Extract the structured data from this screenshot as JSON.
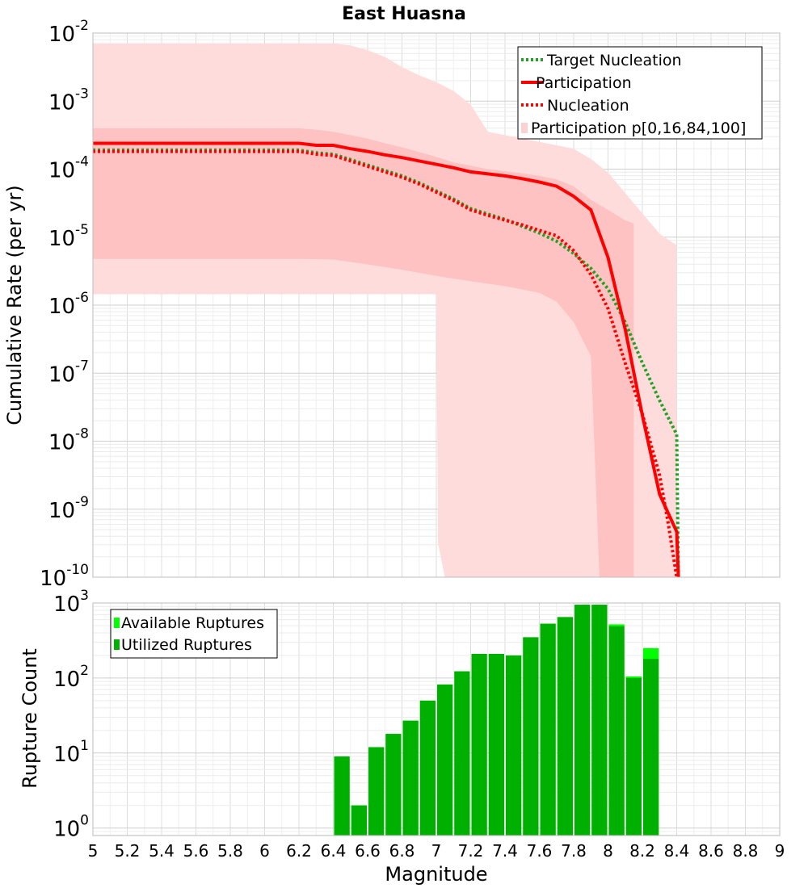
{
  "chart_data": [
    {
      "type": "line",
      "title": "East Huasna",
      "xlabel": "",
      "ylabel": "Cumulative Rate (per yr)",
      "xlim": [
        5,
        9
      ],
      "ylim_log10": [
        -10,
        -2
      ],
      "y_tick_exponents": [
        "-10",
        "-9",
        "-8",
        "-7",
        "-6",
        "-5",
        "-4",
        "-3",
        "-2"
      ],
      "y_tick_base": "10",
      "legend_position": "top-right",
      "legend": [
        "Target Nucleation",
        "Participation",
        "Nucleation",
        "Participation p[0,16,84,100]"
      ],
      "series": [
        {
          "name": "Target Nucleation",
          "style": "dotted",
          "color": "#22a022",
          "x": [
            5.0,
            5.5,
            6.0,
            6.2,
            6.3,
            6.4,
            6.5,
            6.6,
            6.7,
            6.8,
            6.9,
            7.0,
            7.1,
            7.2,
            7.3,
            7.4,
            7.5,
            7.6,
            7.7,
            7.8,
            7.9,
            8.0,
            8.1,
            8.2,
            8.3,
            8.4,
            8.41
          ],
          "log10_y": [
            -3.72,
            -3.72,
            -3.72,
            -3.72,
            -3.76,
            -3.78,
            -3.86,
            -3.94,
            -4.02,
            -4.1,
            -4.2,
            -4.32,
            -4.44,
            -4.58,
            -4.66,
            -4.74,
            -4.84,
            -4.94,
            -5.06,
            -5.24,
            -5.46,
            -5.76,
            -6.25,
            -6.85,
            -7.4,
            -7.9,
            -10.0
          ]
        },
        {
          "name": "Participation",
          "style": "solid",
          "color": "#ff0000",
          "x": [
            5.0,
            5.5,
            6.0,
            6.2,
            6.3,
            6.4,
            6.5,
            6.6,
            6.7,
            6.8,
            6.9,
            7.0,
            7.1,
            7.2,
            7.3,
            7.4,
            7.5,
            7.6,
            7.7,
            7.8,
            7.9,
            8.0,
            8.1,
            8.2,
            8.3,
            8.4,
            8.41
          ],
          "log10_y": [
            -3.62,
            -3.62,
            -3.62,
            -3.62,
            -3.65,
            -3.65,
            -3.7,
            -3.74,
            -3.79,
            -3.83,
            -3.88,
            -3.93,
            -3.98,
            -4.04,
            -4.07,
            -4.1,
            -4.14,
            -4.19,
            -4.25,
            -4.4,
            -4.6,
            -5.3,
            -6.35,
            -7.62,
            -8.78,
            -9.33,
            -10.0
          ]
        },
        {
          "name": "Nucleation",
          "style": "dotted",
          "color": "#ff0000",
          "x": [
            5.0,
            5.5,
            6.0,
            6.2,
            6.3,
            6.4,
            6.5,
            6.6,
            6.7,
            6.8,
            6.9,
            7.0,
            7.1,
            7.2,
            7.3,
            7.4,
            7.5,
            7.6,
            7.7,
            7.8,
            7.9,
            8.0,
            8.1,
            8.2,
            8.3,
            8.35,
            8.4
          ],
          "log10_y": [
            -3.74,
            -3.74,
            -3.74,
            -3.74,
            -3.78,
            -3.8,
            -3.88,
            -3.96,
            -4.04,
            -4.12,
            -4.22,
            -4.34,
            -4.46,
            -4.6,
            -4.68,
            -4.75,
            -4.82,
            -4.9,
            -4.98,
            -5.2,
            -5.55,
            -6.05,
            -6.85,
            -7.6,
            -8.5,
            -9.2,
            -10.0
          ]
        }
      ],
      "bands": [
        {
          "name": "p0-p100",
          "x": [
            5.0,
            5.5,
            6.0,
            6.2,
            6.3,
            6.4,
            6.5,
            6.6,
            6.7,
            6.8,
            6.9,
            7.0,
            7.1,
            7.2,
            7.3,
            7.4,
            7.5,
            7.6,
            7.7,
            7.8,
            7.9,
            8.0,
            8.1,
            8.2,
            8.3,
            8.4
          ],
          "log10_upper": [
            -2.15,
            -2.15,
            -2.15,
            -2.15,
            -2.15,
            -2.15,
            -2.18,
            -2.25,
            -2.35,
            -2.5,
            -2.62,
            -2.72,
            -2.85,
            -3.05,
            -3.45,
            -3.5,
            -3.55,
            -3.6,
            -3.65,
            -3.7,
            -3.85,
            -4.05,
            -4.35,
            -4.65,
            -4.95,
            -5.12
          ],
          "log10_lower_x": [
            5.0,
            6.2,
            7.0,
            7.01,
            7.05
          ],
          "log10_lower": [
            -5.84,
            -5.84,
            -5.84,
            -9.5,
            -10.0
          ]
        },
        {
          "name": "p16-p84",
          "x": [
            5.0,
            5.5,
            6.0,
            6.2,
            6.3,
            6.4,
            6.5,
            6.6,
            6.7,
            6.8,
            6.9,
            7.0,
            7.1,
            7.2,
            7.3,
            7.4,
            7.5,
            7.6,
            7.7,
            7.8,
            7.9,
            8.0,
            8.1,
            8.15
          ],
          "log10_upper": [
            -3.4,
            -3.4,
            -3.4,
            -3.4,
            -3.42,
            -3.45,
            -3.5,
            -3.55,
            -3.62,
            -3.68,
            -3.75,
            -3.82,
            -3.9,
            -3.95,
            -4.0,
            -4.03,
            -4.06,
            -4.1,
            -4.15,
            -4.25,
            -4.45,
            -4.6,
            -4.75,
            -4.8
          ],
          "log10_lower_x": [
            5.0,
            6.2,
            6.4,
            6.6,
            6.8,
            7.0,
            7.2,
            7.4,
            7.6,
            7.7,
            7.8,
            7.9,
            7.95,
            8.0,
            8.1,
            8.12
          ],
          "log10_lower": [
            -5.32,
            -5.32,
            -5.33,
            -5.4,
            -5.48,
            -5.57,
            -5.65,
            -5.72,
            -5.82,
            -5.95,
            -6.25,
            -6.75,
            -10.0,
            -10.0,
            -10.0,
            -10.0
          ]
        }
      ]
    },
    {
      "type": "bar",
      "xlabel": "Magnitude",
      "ylabel": "Rupture Count",
      "xlim": [
        5,
        9
      ],
      "ylim_log10": [
        -0.1,
        3
      ],
      "y_tick_exponents": [
        "0",
        "1",
        "2",
        "3"
      ],
      "y_tick_base": "10",
      "x_ticks": [
        "5",
        "5.2",
        "5.4",
        "5.6",
        "5.8",
        "6",
        "6.2",
        "6.4",
        "6.6",
        "6.8",
        "7",
        "7.2",
        "7.4",
        "7.6",
        "7.8",
        "8",
        "8.2",
        "8.4",
        "8.6",
        "8.8",
        "9"
      ],
      "legend_position": "top-left",
      "legend": [
        "Available Ruptures",
        "Utilized Ruptures"
      ],
      "bar_centers": [
        6.45,
        6.55,
        6.65,
        6.75,
        6.85,
        6.95,
        7.05,
        7.15,
        7.25,
        7.35,
        7.45,
        7.55,
        7.65,
        7.75,
        7.85,
        7.95,
        8.05,
        8.15,
        8.25
      ],
      "series": [
        {
          "name": "Available Ruptures",
          "color": "#00ff00",
          "values": [
            9,
            2,
            12,
            18,
            27,
            50,
            82,
            123,
            210,
            210,
            200,
            350,
            530,
            650,
            950,
            950,
            520,
            105,
            250
          ]
        },
        {
          "name": "Utilized Ruptures",
          "color": "#00b000",
          "values": [
            9,
            2,
            12,
            18,
            27,
            50,
            82,
            123,
            210,
            210,
            200,
            350,
            530,
            650,
            950,
            950,
            490,
            100,
            180
          ]
        }
      ]
    }
  ]
}
